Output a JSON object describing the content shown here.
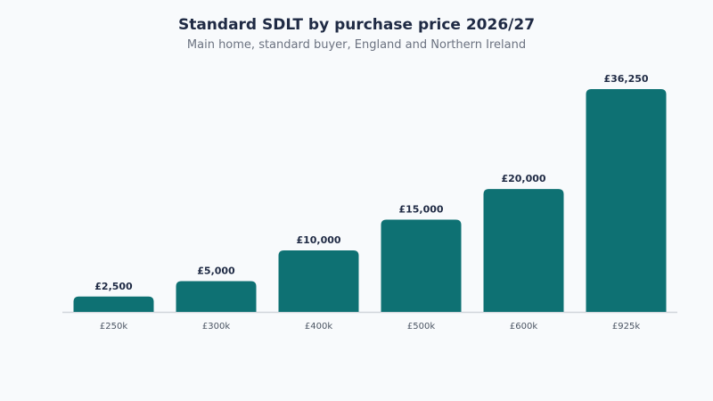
{
  "chart_data": {
    "type": "bar",
    "title": "Standard SDLT by purchase price 2026/27",
    "subtitle": "Main home, standard buyer, England and Northern Ireland",
    "categories": [
      "£250k",
      "£300k",
      "£400k",
      "£500k",
      "£600k",
      "£925k"
    ],
    "values": [
      2500,
      5000,
      10000,
      15000,
      20000,
      36250
    ],
    "value_labels": [
      "£2,500",
      "£5,000",
      "£10,000",
      "£15,000",
      "£20,000",
      "£36,250"
    ],
    "xlabel": "",
    "ylabel": "",
    "ylim": [
      0,
      36250
    ],
    "grid": false,
    "legend": "none",
    "bar_color": "#0e7173",
    "axis_color": "#d1d5db"
  }
}
